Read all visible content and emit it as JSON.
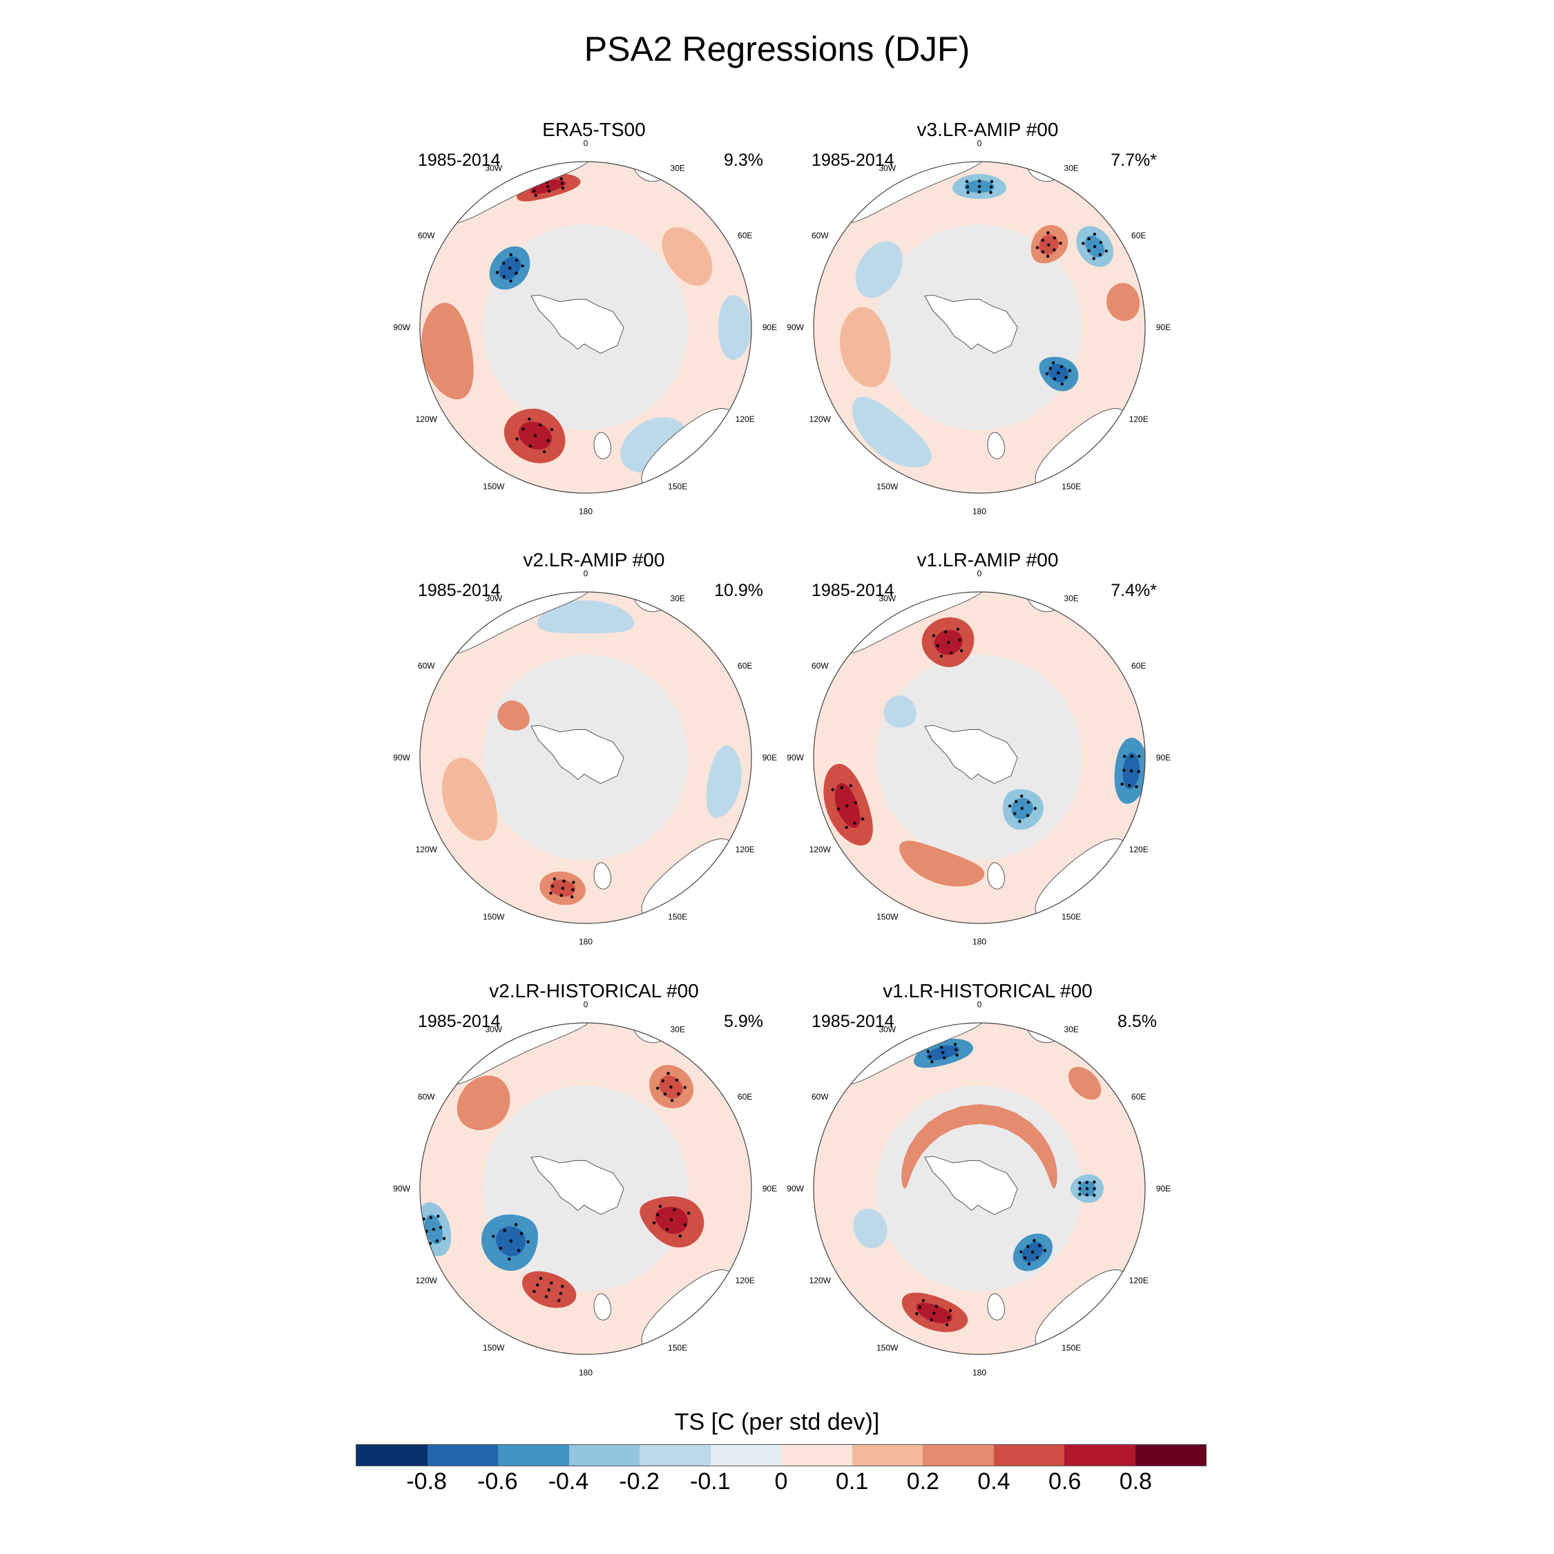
{
  "title": "PSA2 Regressions (DJF)",
  "colorbar": {
    "title": "TS [C (per std dev)]",
    "levels": [
      "-0.8",
      "-0.6",
      "-0.4",
      "-0.2",
      "-0.1",
      "0",
      "0.1",
      "0.2",
      "0.4",
      "0.6",
      "0.8"
    ],
    "colors": [
      "#08306b",
      "#2166ac",
      "#4393c3",
      "#92c5de",
      "#bcd9ea",
      "#e3ecf2",
      "#fbe5da",
      "#f4b99c",
      "#e58b6e",
      "#cf4f45",
      "#b2182b",
      "#67001f"
    ]
  },
  "lon_labels": [
    "0",
    "30E",
    "60E",
    "90E",
    "120E",
    "150E",
    "180",
    "150W",
    "120W",
    "90W",
    "60W",
    "30W"
  ],
  "panels": [
    {
      "title": "ERA5-TS00",
      "period": "1985-2014",
      "variance": "9.3%"
    },
    {
      "title": "v3.LR-AMIP  #00",
      "period": "1985-2014",
      "variance": "7.7%*"
    },
    {
      "title": "v2.LR-AMIP  #00",
      "period": "1985-2014",
      "variance": "10.9%"
    },
    {
      "title": "v1.LR-AMIP  #00",
      "period": "1985-2014",
      "variance": "7.4%*"
    },
    {
      "title": "v2.LR-HISTORICAL  #00",
      "period": "1985-2014",
      "variance": "5.9%"
    },
    {
      "title": "v1.LR-HISTORICAL  #00",
      "period": "1985-2014",
      "variance": "8.5%"
    }
  ],
  "chart_data": {
    "type": "polar-stereographic map panels (shaded regression field)",
    "variable": "TS",
    "units": "C (per std dev)",
    "season": "DJF",
    "contour_levels": [
      -0.8,
      -0.6,
      -0.4,
      -0.2,
      -0.1,
      0,
      0.1,
      0.2,
      0.4,
      0.6,
      0.8
    ],
    "panels": [
      {
        "name": "ERA5-TS00",
        "variance_pct": 9.3,
        "significant": false,
        "anomalies": [
          {
            "lon": 345,
            "r": 0.88,
            "w": 26,
            "dr": 0.13,
            "level": 0.5
          },
          {
            "lon": 308,
            "r": 0.58,
            "w": 28,
            "dr": 0.22,
            "level": -0.45
          },
          {
            "lon": 205,
            "r": 0.72,
            "w": 30,
            "dr": 0.32,
            "level": 0.45
          },
          {
            "lon": 150,
            "r": 0.82,
            "w": 30,
            "dr": 0.3,
            "level": -0.15
          },
          {
            "lon": 55,
            "r": 0.75,
            "w": 30,
            "dr": 0.25,
            "level": 0.15
          },
          {
            "lon": 260,
            "r": 0.85,
            "w": 40,
            "dr": 0.3,
            "level": 0.2
          },
          {
            "lon": 90,
            "r": 0.9,
            "w": 25,
            "dr": 0.2,
            "level": -0.15
          }
        ]
      },
      {
        "name": "v3.LR-AMIP #00",
        "variance_pct": 7.7,
        "significant": true,
        "anomalies": [
          {
            "lon": 0,
            "r": 0.85,
            "w": 22,
            "dr": 0.15,
            "level": -0.35
          },
          {
            "lon": 40,
            "r": 0.65,
            "w": 18,
            "dr": 0.25,
            "level": 0.35
          },
          {
            "lon": 55,
            "r": 0.85,
            "w": 18,
            "dr": 0.2,
            "level": -0.4
          },
          {
            "lon": 80,
            "r": 0.88,
            "w": 15,
            "dr": 0.2,
            "level": 0.25
          },
          {
            "lon": 120,
            "r": 0.55,
            "w": 20,
            "dr": 0.25,
            "level": -0.45
          },
          {
            "lon": 260,
            "r": 0.7,
            "w": 40,
            "dr": 0.3,
            "level": 0.15
          },
          {
            "lon": 300,
            "r": 0.7,
            "w": 30,
            "dr": 0.25,
            "level": -0.2
          },
          {
            "lon": 220,
            "r": 0.85,
            "w": 40,
            "dr": 0.25,
            "level": -0.15
          }
        ]
      },
      {
        "name": "v2.LR-AMIP #00",
        "variance_pct": 10.9,
        "significant": false,
        "anomalies": [
          {
            "lon": 190,
            "r": 0.8,
            "w": 20,
            "dr": 0.2,
            "level": 0.35
          },
          {
            "lon": 300,
            "r": 0.5,
            "w": 20,
            "dr": 0.2,
            "level": 0.25
          },
          {
            "lon": 0,
            "r": 0.85,
            "w": 40,
            "dr": 0.2,
            "level": -0.15
          },
          {
            "lon": 100,
            "r": 0.85,
            "w": 30,
            "dr": 0.2,
            "level": -0.15
          },
          {
            "lon": 250,
            "r": 0.75,
            "w": 40,
            "dr": 0.3,
            "level": 0.12
          }
        ]
      },
      {
        "name": "v1.LR-AMIP #00",
        "variance_pct": 7.4,
        "significant": true,
        "anomalies": [
          {
            "lon": 345,
            "r": 0.72,
            "w": 25,
            "dr": 0.3,
            "level": 0.45
          },
          {
            "lon": 95,
            "r": 0.92,
            "w": 25,
            "dr": 0.2,
            "level": -0.45
          },
          {
            "lon": 250,
            "r": 0.85,
            "w": 35,
            "dr": 0.25,
            "level": 0.55
          },
          {
            "lon": 140,
            "r": 0.4,
            "w": 35,
            "dr": 0.25,
            "level": -0.4
          },
          {
            "lon": 200,
            "r": 0.7,
            "w": 45,
            "dr": 0.2,
            "level": 0.25
          },
          {
            "lon": 300,
            "r": 0.55,
            "w": 20,
            "dr": 0.2,
            "level": -0.2
          }
        ]
      },
      {
        "name": "v2.LR-HISTORICAL #00",
        "variance_pct": 5.9,
        "significant": false,
        "anomalies": [
          {
            "lon": 235,
            "r": 0.55,
            "w": 35,
            "dr": 0.35,
            "level": -0.5
          },
          {
            "lon": 255,
            "r": 0.95,
            "w": 20,
            "dr": 0.2,
            "level": -0.4
          },
          {
            "lon": 200,
            "r": 0.65,
            "w": 30,
            "dr": 0.2,
            "level": 0.4
          },
          {
            "lon": 110,
            "r": 0.55,
            "w": 30,
            "dr": 0.4,
            "level": 0.55
          },
          {
            "lon": 40,
            "r": 0.8,
            "w": 20,
            "dr": 0.25,
            "level": 0.35
          },
          {
            "lon": 310,
            "r": 0.8,
            "w": 25,
            "dr": 0.3,
            "level": 0.25
          }
        ]
      },
      {
        "name": "v1.LR-HISTORICAL #00",
        "variance_pct": 8.5,
        "significant": false,
        "anomalies": [
          {
            "lon": 345,
            "r": 0.85,
            "w": 25,
            "dr": 0.15,
            "level": -0.45
          },
          {
            "lon": 90,
            "r": 0.65,
            "w": 15,
            "dr": 0.2,
            "level": -0.4
          },
          {
            "lon": 140,
            "r": 0.5,
            "w": 30,
            "dr": 0.2,
            "level": -0.45
          },
          {
            "lon": 200,
            "r": 0.8,
            "w": 30,
            "dr": 0.2,
            "level": 0.45
          },
          {
            "lon": 0,
            "r": 0.45,
            "w": 180,
            "dr": 0.12,
            "level": 0.3
          },
          {
            "lon": 250,
            "r": 0.7,
            "w": 20,
            "dr": 0.2,
            "level": -0.2
          },
          {
            "lon": 45,
            "r": 0.9,
            "w": 15,
            "dr": 0.15,
            "level": 0.3
          }
        ]
      }
    ]
  }
}
